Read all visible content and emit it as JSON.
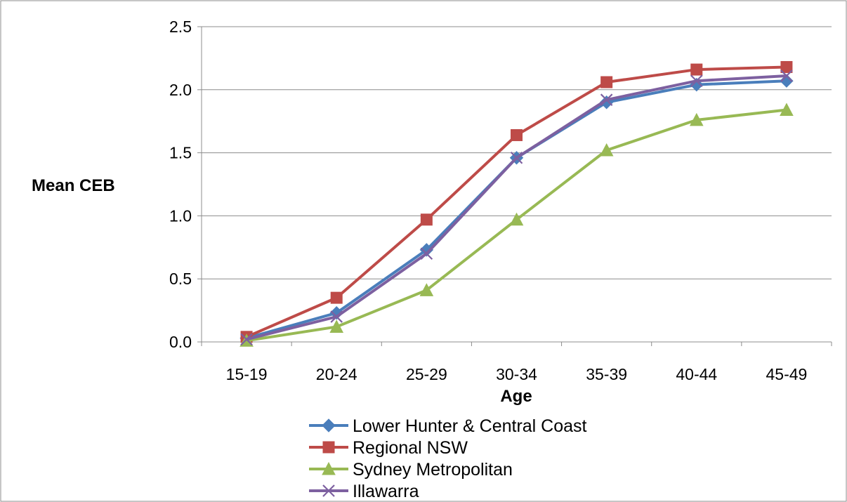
{
  "chart_data": {
    "type": "line",
    "title": "",
    "xlabel": "Age",
    "ylabel": "Mean CEB",
    "categories": [
      "15-19",
      "20-24",
      "25-29",
      "30-34",
      "35-39",
      "40-44",
      "45-49"
    ],
    "ylim": [
      0,
      2.5
    ],
    "yticks": [
      "0.0",
      "0.5",
      "1.0",
      "1.5",
      "2.0",
      "2.5"
    ],
    "grid": true,
    "legend_position": "bottom",
    "series": [
      {
        "name": "Lower Hunter & Central Coast",
        "color": "#4a7ebb",
        "marker": "diamond",
        "values": [
          0.03,
          0.23,
          0.73,
          1.46,
          1.9,
          2.04,
          2.07
        ]
      },
      {
        "name": "Regional NSW",
        "color": "#be4b48",
        "marker": "square",
        "values": [
          0.04,
          0.35,
          0.97,
          1.64,
          2.06,
          2.16,
          2.18
        ]
      },
      {
        "name": "Sydney Metropolitan",
        "color": "#98b954",
        "marker": "triangle",
        "values": [
          0.01,
          0.12,
          0.41,
          0.97,
          1.52,
          1.76,
          1.84
        ]
      },
      {
        "name": "Illawarra",
        "color": "#7d60a0",
        "marker": "x",
        "values": [
          0.02,
          0.2,
          0.7,
          1.46,
          1.92,
          2.07,
          2.11
        ]
      }
    ]
  }
}
